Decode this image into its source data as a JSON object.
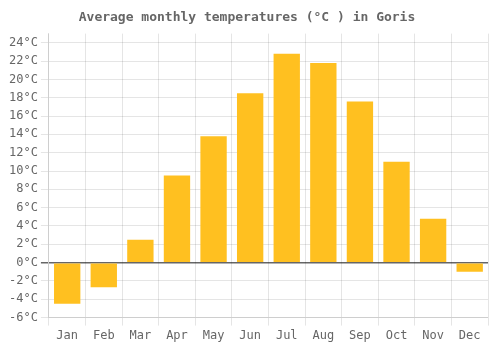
{
  "chart_data": {
    "type": "bar",
    "title": "Average monthly temperatures (°C ) in Goris",
    "categories": [
      "Jan",
      "Feb",
      "Mar",
      "Apr",
      "May",
      "Jun",
      "Jul",
      "Aug",
      "Sep",
      "Oct",
      "Nov",
      "Dec"
    ],
    "values": [
      -4.5,
      -2.7,
      2.5,
      9.5,
      13.8,
      18.5,
      22.8,
      21.8,
      17.6,
      11.0,
      4.8,
      -1.0
    ],
    "color": "#FFC020",
    "ylim": [
      -6,
      25
    ],
    "yticks": [
      {
        "value": -6,
        "label": "-6°C"
      },
      {
        "value": -4,
        "label": "-4°C"
      },
      {
        "value": -2,
        "label": "-2°C"
      },
      {
        "value": 0,
        "label": "0°C"
      },
      {
        "value": 2,
        "label": "2°C"
      },
      {
        "value": 4,
        "label": "4°C"
      },
      {
        "value": 6,
        "label": "6°C"
      },
      {
        "value": 8,
        "label": "8°C"
      },
      {
        "value": 10,
        "label": "10°C"
      },
      {
        "value": 12,
        "label": "12°C"
      },
      {
        "value": 14,
        "label": "14°C"
      },
      {
        "value": 16,
        "label": "16°C"
      },
      {
        "value": 18,
        "label": "18°C"
      },
      {
        "value": 20,
        "label": "20°C"
      },
      {
        "value": 22,
        "label": "22°C"
      },
      {
        "value": 24,
        "label": "24°C"
      }
    ],
    "grid": true
  }
}
